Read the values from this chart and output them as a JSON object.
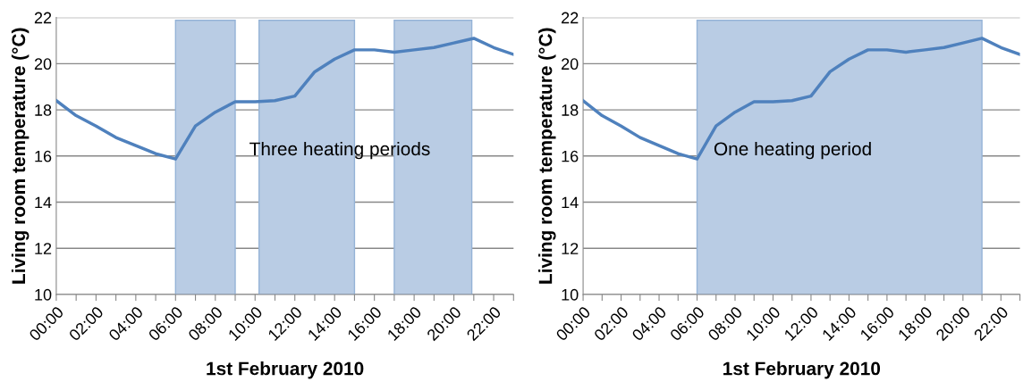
{
  "chart_data": [
    {
      "type": "line",
      "xlabel": "1st February 2010",
      "ylabel": "Living room temperature (°C)",
      "x": [
        0,
        1,
        2,
        3,
        4,
        5,
        6,
        7,
        8,
        9,
        10,
        11,
        12,
        13,
        14,
        15,
        16,
        17,
        18,
        19,
        20,
        21,
        22,
        23
      ],
      "series": [
        {
          "color": "#4f81bd",
          "values": [
            18.4,
            17.75,
            17.3,
            16.8,
            16.45,
            16.1,
            15.87,
            17.3,
            17.9,
            18.35,
            18.35,
            18.4,
            18.6,
            19.65,
            20.2,
            20.6,
            20.6,
            20.5,
            20.6,
            20.7,
            20.9,
            21.1,
            20.7,
            20.4
          ]
        }
      ],
      "bands": [
        {
          "axis": "x",
          "from": 6,
          "to": 9,
          "color": "#b9cce4"
        },
        {
          "axis": "x",
          "from": 10.2,
          "to": 15,
          "color": "#b9cce4"
        },
        {
          "axis": "x",
          "from": 17,
          "to": 20.9,
          "color": "#b9cce4"
        }
      ],
      "annotations": [
        "Three heating periods"
      ],
      "xlim": [
        0,
        23
      ],
      "ylim": [
        10,
        22
      ],
      "yticks": [
        10,
        12,
        14,
        16,
        18,
        20,
        22
      ],
      "xticks": [
        {
          "value": 0,
          "label": "00:00"
        },
        {
          "value": 1,
          "label": null
        },
        {
          "value": 2,
          "label": "02:00"
        },
        {
          "value": 3,
          "label": null
        },
        {
          "value": 4,
          "label": "04:00"
        },
        {
          "value": 5,
          "label": null
        },
        {
          "value": 6,
          "label": "06:00"
        },
        {
          "value": 7,
          "label": null
        },
        {
          "value": 8,
          "label": "08:00"
        },
        {
          "value": 9,
          "label": null
        },
        {
          "value": 10,
          "label": "10:00"
        },
        {
          "value": 11,
          "label": null
        },
        {
          "value": 12,
          "label": "12:00"
        },
        {
          "value": 13,
          "label": null
        },
        {
          "value": 14,
          "label": "14:00"
        },
        {
          "value": 15,
          "label": null
        },
        {
          "value": 16,
          "label": "16:00"
        },
        {
          "value": 17,
          "label": null
        },
        {
          "value": 18,
          "label": "18:00"
        },
        {
          "value": 19,
          "label": null
        },
        {
          "value": 20,
          "label": "20:00"
        },
        {
          "value": 21,
          "label": null
        },
        {
          "value": 22,
          "label": "22:00"
        },
        {
          "value": 23,
          "label": null
        }
      ],
      "grid": "y",
      "legend": false,
      "marker": "none",
      "line_style": "solid"
    },
    {
      "type": "line",
      "xlabel": "1st February 2010",
      "ylabel": "Living room temperature (°C)",
      "x": [
        0,
        1,
        2,
        3,
        4,
        5,
        6,
        7,
        8,
        9,
        10,
        11,
        12,
        13,
        14,
        15,
        16,
        17,
        18,
        19,
        20,
        21,
        22,
        23
      ],
      "series": [
        {
          "color": "#4f81bd",
          "values": [
            18.4,
            17.75,
            17.3,
            16.8,
            16.45,
            16.1,
            15.87,
            17.3,
            17.9,
            18.35,
            18.35,
            18.4,
            18.6,
            19.65,
            20.2,
            20.6,
            20.6,
            20.5,
            20.6,
            20.7,
            20.9,
            21.1,
            20.7,
            20.4
          ]
        }
      ],
      "bands": [
        {
          "axis": "x",
          "from": 6,
          "to": 21,
          "color": "#b9cce4"
        }
      ],
      "annotations": [
        "One heating period"
      ],
      "xlim": [
        0,
        23
      ],
      "ylim": [
        10,
        22
      ],
      "yticks": [
        10,
        12,
        14,
        16,
        18,
        20,
        22
      ],
      "xticks": [
        {
          "value": 0,
          "label": "00:00"
        },
        {
          "value": 1,
          "label": null
        },
        {
          "value": 2,
          "label": "02:00"
        },
        {
          "value": 3,
          "label": null
        },
        {
          "value": 4,
          "label": "04:00"
        },
        {
          "value": 5,
          "label": null
        },
        {
          "value": 6,
          "label": "06:00"
        },
        {
          "value": 7,
          "label": null
        },
        {
          "value": 8,
          "label": "08:00"
        },
        {
          "value": 9,
          "label": null
        },
        {
          "value": 10,
          "label": "10:00"
        },
        {
          "value": 11,
          "label": null
        },
        {
          "value": 12,
          "label": "12:00"
        },
        {
          "value": 13,
          "label": null
        },
        {
          "value": 14,
          "label": "14:00"
        },
        {
          "value": 15,
          "label": null
        },
        {
          "value": 16,
          "label": "16:00"
        },
        {
          "value": 17,
          "label": null
        },
        {
          "value": 18,
          "label": "18:00"
        },
        {
          "value": 19,
          "label": null
        },
        {
          "value": 20,
          "label": "20:00"
        },
        {
          "value": 21,
          "label": null
        },
        {
          "value": 22,
          "label": "22:00"
        },
        {
          "value": 23,
          "label": null
        }
      ],
      "grid": "y",
      "legend": false,
      "marker": "none",
      "line_style": "solid"
    }
  ]
}
